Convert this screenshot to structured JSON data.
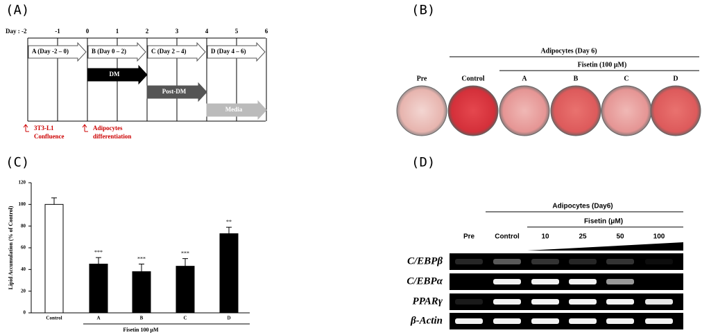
{
  "panel_labels": [
    "(A)",
    "(B)",
    "(C)",
    "(D)"
  ],
  "timeline": {
    "day_label": "Day : -2",
    "days": [
      "-1",
      "0",
      "1",
      "2",
      "3",
      "4",
      "5",
      "6"
    ],
    "phases": [
      "A (Day -2 – 0)",
      "B (Day 0 – 2)",
      "C (Day 2 – 4)",
      "D (Day 4 – 6)"
    ],
    "treatments": [
      "DM",
      "Post-DM",
      "Media"
    ],
    "notes": [
      [
        "3T3-L1",
        "Confluence"
      ],
      [
        "Adipocytes",
        "differentiation"
      ]
    ]
  },
  "staining": {
    "group": "Adipocytes (Day 6)",
    "treatment": "Fisetin (100 μM)",
    "wells": [
      "Pre",
      "Control",
      "A",
      "B",
      "C",
      "D"
    ]
  },
  "chart_data": {
    "type": "bar",
    "y_label": "Lipid Accumulation (% of Control)",
    "categories": [
      "Control",
      "A",
      "B",
      "C",
      "D"
    ],
    "values": [
      100,
      45,
      38,
      43,
      73
    ],
    "errors": [
      6,
      6,
      7,
      7,
      6
    ],
    "annotations": [
      null,
      "***",
      "***",
      "***",
      "**"
    ],
    "colors": [
      "#ffffff",
      "#000000",
      "#000000",
      "#000000",
      "#000000"
    ],
    "group_label": "Fisetin 100 μM",
    "ylim": [
      0,
      120
    ],
    "yticks": [
      0,
      20,
      40,
      60,
      80,
      100,
      120
    ]
  },
  "gel": {
    "group": "Adipocytes (Day6)",
    "treatment": "Fisetin (μM)",
    "lanes": [
      "Pre",
      "Control",
      "10",
      "25",
      "50",
      "100"
    ],
    "genes": [
      "C/EBPβ",
      "C/EBPα",
      "PPARγ",
      "β-Actin"
    ]
  }
}
